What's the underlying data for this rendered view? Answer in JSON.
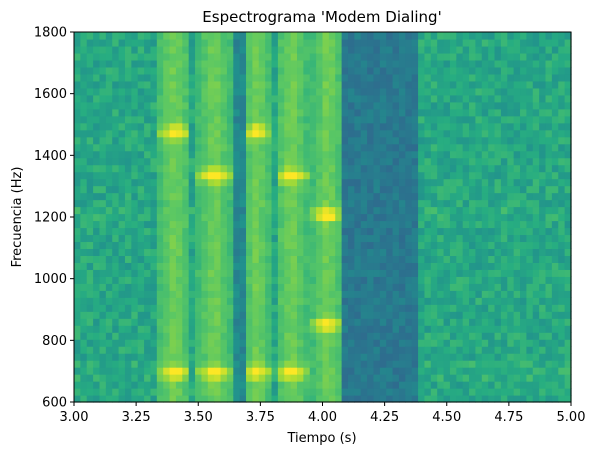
{
  "chart_data": {
    "type": "heatmap",
    "title": "Espectrograma 'Modem Dialing'",
    "xlabel": "Tiempo (s)",
    "ylabel": "Frecuencia (Hz)",
    "xlim": [
      3.0,
      5.0
    ],
    "ylim": [
      600,
      1800
    ],
    "xticks": [
      3.0,
      3.25,
      3.5,
      3.75,
      4.0,
      4.25,
      4.5,
      4.75,
      5.0
    ],
    "xtick_labels": [
      "3.00",
      "3.25",
      "3.50",
      "3.75",
      "4.00",
      "4.25",
      "4.50",
      "4.75",
      "5.00"
    ],
    "yticks": [
      600,
      800,
      1000,
      1200,
      1400,
      1600,
      1800
    ],
    "ytick_labels": [
      "600",
      "800",
      "1000",
      "1200",
      "1400",
      "1600",
      "1800"
    ],
    "colormap": "viridis",
    "grid": false,
    "tone_segments": [
      {
        "t_start": 3.34,
        "t_end": 3.47,
        "low_hz": 697,
        "high_hz": 1477
      },
      {
        "t_start": 3.5,
        "t_end": 3.63,
        "low_hz": 697,
        "high_hz": 1336
      },
      {
        "t_start": 3.68,
        "t_end": 3.79,
        "low_hz": 697,
        "high_hz": 1477
      },
      {
        "t_start": 3.81,
        "t_end": 3.94,
        "low_hz": 697,
        "high_hz": 1336
      },
      {
        "t_start": 3.96,
        "t_end": 4.08,
        "low_hz": 852,
        "high_hz": 1209
      }
    ],
    "low_energy_intervals": [
      {
        "t_start": 3.63,
        "t_end": 3.68
      },
      {
        "t_start": 3.94,
        "t_end": 3.96
      },
      {
        "t_start": 4.08,
        "t_end": 4.38
      }
    ]
  }
}
